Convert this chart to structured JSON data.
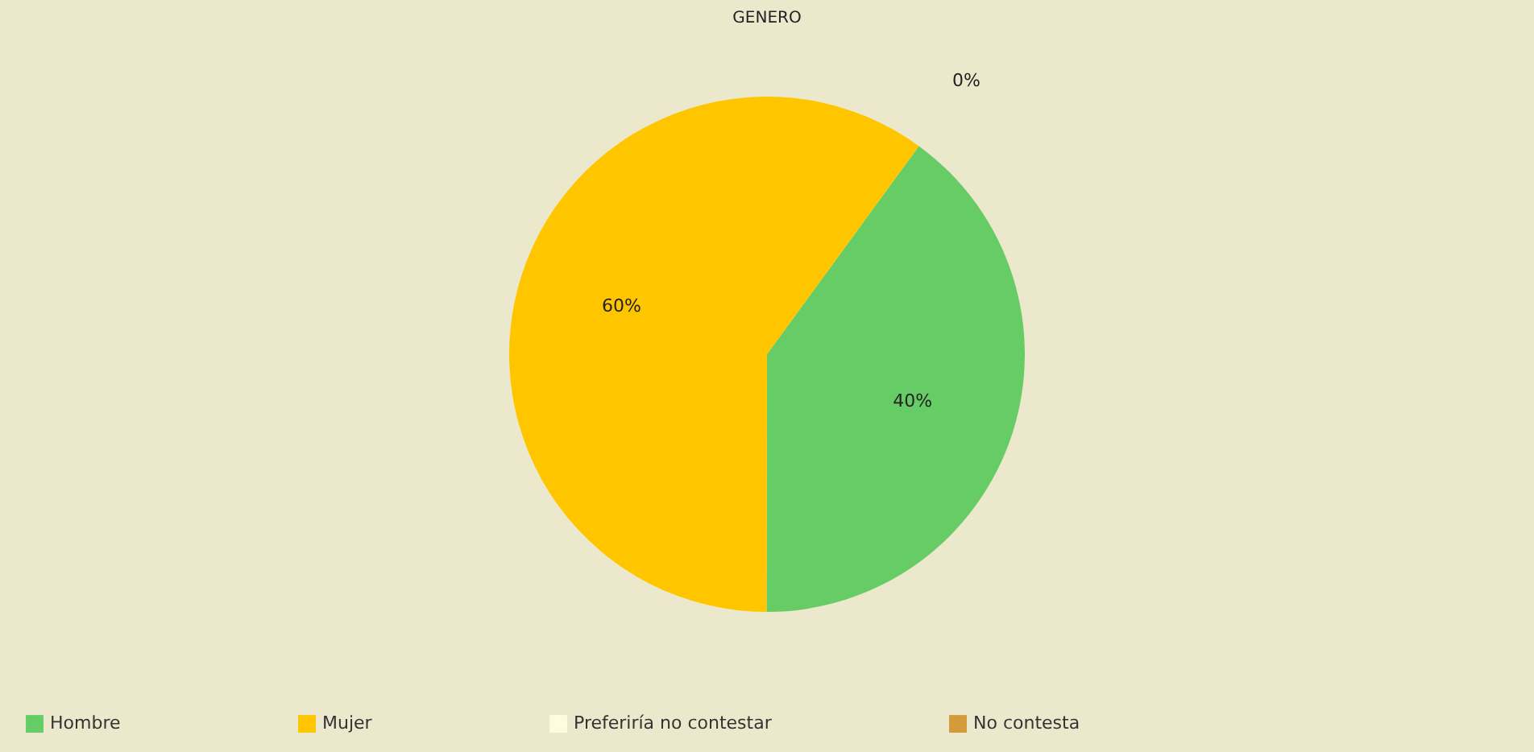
{
  "chart_data": {
    "type": "pie",
    "title": "GENERO",
    "categories": [
      "Hombre",
      "Mujer",
      "Preferiría no contestar",
      "No contesta"
    ],
    "values": [
      40,
      60,
      0,
      0
    ],
    "colors": [
      "#66cc66",
      "#ffc600",
      "#fdfbe0",
      "#d49a3c"
    ],
    "value_labels": [
      "40%",
      "60%",
      "0%",
      null
    ],
    "legend": "bottom"
  }
}
